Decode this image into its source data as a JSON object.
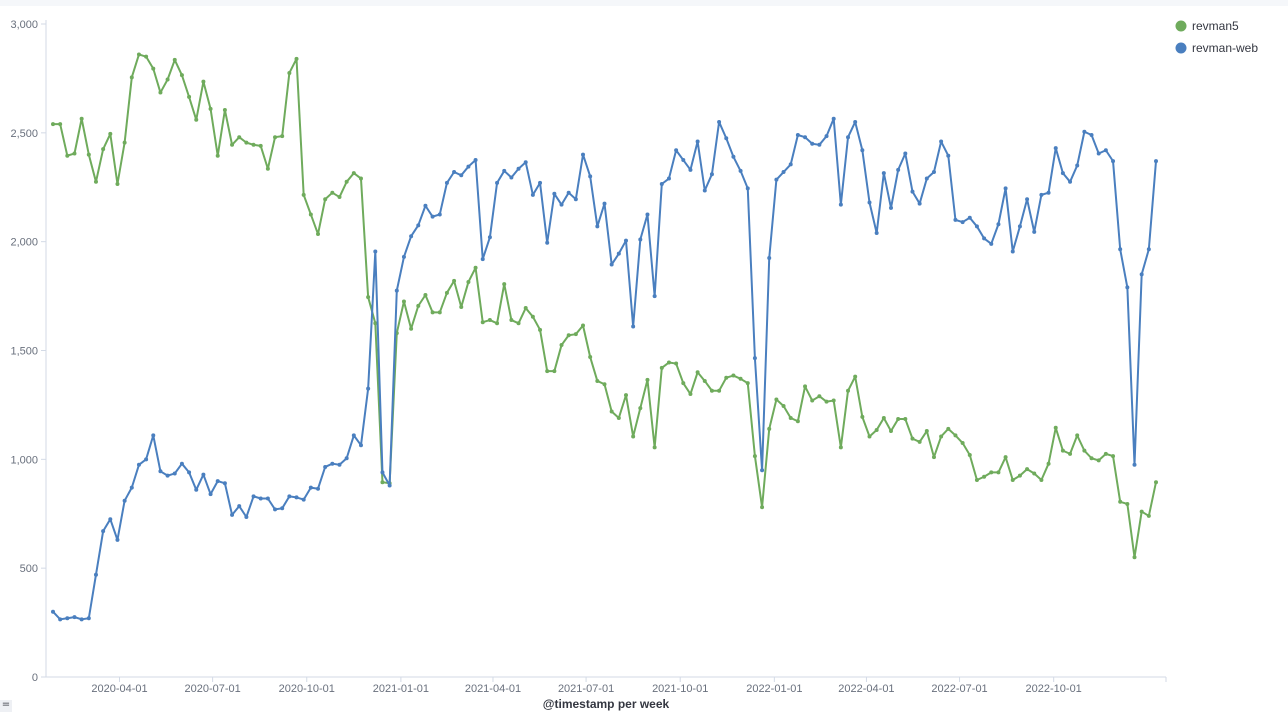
{
  "chart_data": {
    "type": "line",
    "xlabel": "@timestamp per week",
    "ylim": [
      0,
      3000
    ],
    "y_ticks": [
      "0",
      "500",
      "1,000",
      "1,500",
      "2,000",
      "2,500",
      "3,000"
    ],
    "x_tick_labels": [
      "2020-04-01",
      "2020-07-01",
      "2020-10-01",
      "2021-01-01",
      "2021-04-01",
      "2021-07-01",
      "2021-10-01",
      "2022-01-01",
      "2022-04-01",
      "2022-07-01",
      "2022-10-01"
    ],
    "x_start": "2020-01-27",
    "x_interval_days": 7,
    "grid": false,
    "legend_position": "top-right",
    "series": [
      {
        "name": "revman5",
        "color": "#6fab5c",
        "values": [
          2540,
          2540,
          2395,
          2405,
          2565,
          2400,
          2275,
          2425,
          2495,
          2265,
          2455,
          2755,
          2860,
          2850,
          2795,
          2685,
          2745,
          2835,
          2765,
          2665,
          2560,
          2735,
          2610,
          2395,
          2605,
          2445,
          2480,
          2455,
          2445,
          2440,
          2335,
          2480,
          2485,
          2775,
          2840,
          2215,
          2125,
          2035,
          2195,
          2225,
          2205,
          2275,
          2315,
          2290,
          1745,
          1625,
          895,
          890,
          1580,
          1725,
          1600,
          1705,
          1755,
          1675,
          1675,
          1765,
          1820,
          1700,
          1815,
          1880,
          1630,
          1640,
          1625,
          1805,
          1640,
          1625,
          1695,
          1655,
          1595,
          1405,
          1405,
          1525,
          1570,
          1575,
          1615,
          1470,
          1360,
          1345,
          1220,
          1190,
          1295,
          1105,
          1235,
          1365,
          1055,
          1420,
          1445,
          1440,
          1350,
          1300,
          1400,
          1360,
          1315,
          1315,
          1375,
          1385,
          1370,
          1350,
          1015,
          780,
          1140,
          1275,
          1245,
          1190,
          1175,
          1335,
          1270,
          1290,
          1265,
          1270,
          1055,
          1315,
          1380,
          1195,
          1105,
          1135,
          1190,
          1130,
          1185,
          1185,
          1095,
          1080,
          1130,
          1010,
          1105,
          1140,
          1110,
          1075,
          1020,
          905,
          920,
          940,
          940,
          1010,
          905,
          925,
          955,
          935,
          905,
          980,
          1145,
          1040,
          1025,
          1110,
          1040,
          1005,
          995,
          1025,
          1015,
          805,
          795,
          550,
          760,
          740,
          895
        ]
      },
      {
        "name": "revman-web",
        "color": "#4a7fbf",
        "values": [
          300,
          265,
          270,
          275,
          265,
          270,
          470,
          670,
          725,
          630,
          810,
          870,
          975,
          1000,
          1110,
          945,
          925,
          935,
          980,
          940,
          860,
          930,
          840,
          900,
          890,
          745,
          785,
          735,
          830,
          820,
          820,
          770,
          775,
          830,
          825,
          815,
          870,
          865,
          965,
          980,
          975,
          1005,
          1110,
          1065,
          1325,
          1955,
          940,
          880,
          1775,
          1930,
          2025,
          2075,
          2165,
          2115,
          2125,
          2270,
          2320,
          2305,
          2345,
          2375,
          1920,
          2020,
          2270,
          2325,
          2295,
          2335,
          2365,
          2215,
          2270,
          1995,
          2220,
          2170,
          2225,
          2195,
          2400,
          2300,
          2070,
          2175,
          1895,
          1945,
          2005,
          1610,
          2010,
          2125,
          1750,
          2265,
          2290,
          2420,
          2375,
          2330,
          2460,
          2235,
          2310,
          2550,
          2475,
          2390,
          2325,
          2245,
          1465,
          950,
          1925,
          2285,
          2320,
          2355,
          2490,
          2480,
          2450,
          2445,
          2485,
          2565,
          2170,
          2480,
          2550,
          2420,
          2180,
          2040,
          2315,
          2155,
          2330,
          2405,
          2230,
          2175,
          2290,
          2320,
          2460,
          2395,
          2100,
          2090,
          2110,
          2070,
          2015,
          1990,
          2080,
          2245,
          1955,
          2070,
          2195,
          2045,
          2215,
          2225,
          2430,
          2315,
          2275,
          2350,
          2505,
          2490,
          2405,
          2420,
          2370,
          1965,
          1790,
          975,
          1850,
          1965,
          2370
        ]
      }
    ]
  }
}
